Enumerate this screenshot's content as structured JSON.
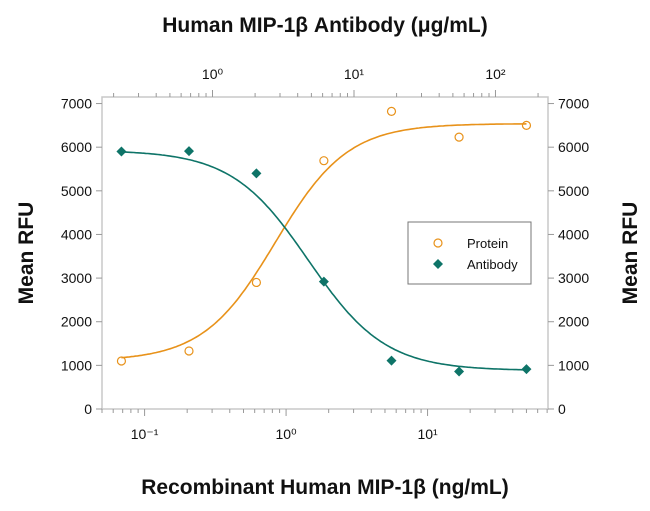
{
  "chart_data": {
    "type": "scatter",
    "title": "",
    "xlabel": "Recombinant Human MIP-1β (ng/mL)",
    "x2label": "Human MIP-1β Antibody (μg/mL)",
    "ylabel": "Mean RFU",
    "y2label": "Mean RFU",
    "xscale": "log",
    "xlim": [
      0.05,
      71
    ],
    "ylim": [
      0,
      7150
    ],
    "x_ticks": [
      0.1,
      1,
      10
    ],
    "x_tick_labels": [
      "10⁻¹",
      "10⁰",
      "10¹"
    ],
    "x2_ticks": [
      1,
      10,
      100
    ],
    "x2_tick_labels": [
      "10⁰",
      "10¹",
      "10²"
    ],
    "y_ticks": [
      0,
      1000,
      2000,
      3000,
      4000,
      5000,
      6000,
      7000
    ],
    "y_tick_labels": [
      "0",
      "1000",
      "2000",
      "3000",
      "4000",
      "5000",
      "6000",
      "7000"
    ],
    "grid": false,
    "legend_position": "right-middle",
    "series": [
      {
        "name": "Protein",
        "marker": "open-circle",
        "color": "#E8921A",
        "x": [
          0.0686,
          0.206,
          0.617,
          1.85,
          5.56,
          16.7,
          50
        ],
        "y": [
          1100,
          1330,
          2900,
          5690,
          6820,
          6230,
          6500
        ]
      },
      {
        "name": "Antibody",
        "marker": "filled-diamond",
        "color": "#0E7468",
        "x": [
          0.0686,
          0.206,
          0.617,
          1.85,
          5.56,
          16.7,
          50
        ],
        "y": [
          5900,
          5910,
          5400,
          2920,
          1110,
          860,
          915
        ]
      }
    ]
  }
}
